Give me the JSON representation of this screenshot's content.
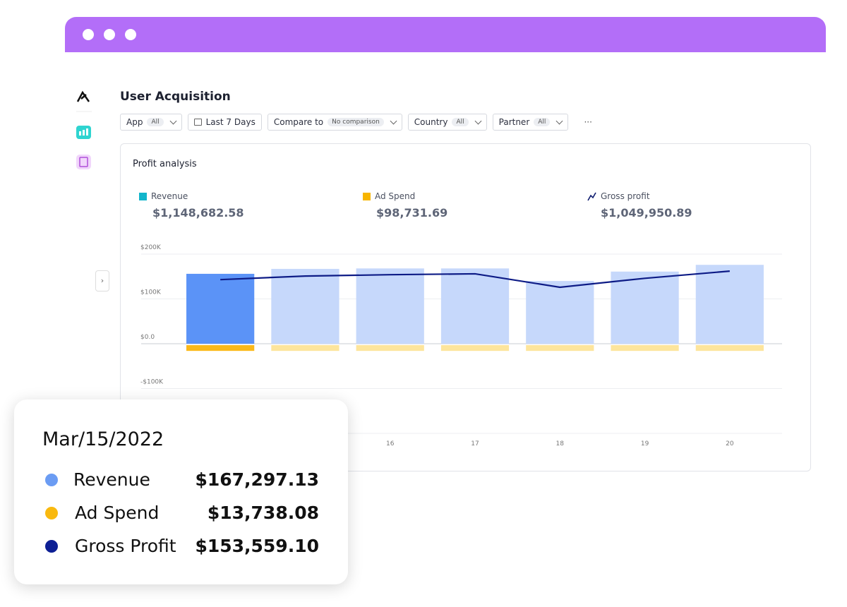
{
  "header": {
    "title": "User Acquisition"
  },
  "filters": [
    {
      "label": "App",
      "badge": "All"
    },
    {
      "label": "Last 7 Days"
    },
    {
      "label": "Compare to",
      "badge": "No comparison"
    },
    {
      "label": "Country",
      "badge": "All"
    },
    {
      "label": "Partner",
      "badge": "All"
    }
  ],
  "more": "···",
  "card": {
    "title": "Profit analysis",
    "legend": [
      {
        "name": "Revenue",
        "total": "$1,148,682.58",
        "color": "#12b5cb"
      },
      {
        "name": "Ad Spend",
        "total": "$98,731.69",
        "color": "#f7b500"
      },
      {
        "name": "Gross profit",
        "total": "$1,049,950.89",
        "color": "#0d1b6e"
      }
    ]
  },
  "chart_data": {
    "type": "bar",
    "categories": [
      null,
      null,
      "16",
      "17",
      "18",
      "19",
      "20"
    ],
    "series": [
      {
        "name": "Revenue",
        "color": "#5b93f7",
        "faded_color": "#c6d8fb",
        "values": [
          156000,
          167000,
          168000,
          168000,
          140000,
          161000,
          176000
        ]
      },
      {
        "name": "Ad Spend",
        "color": "#fbb91a",
        "faded_color": "#fde59c",
        "values": [
          -16000,
          -16000,
          -16000,
          -16000,
          -16000,
          -16000,
          -16000
        ]
      },
      {
        "name": "Gross profit",
        "type": "line",
        "color": "#0d1b86",
        "values": [
          143000,
          151000,
          154000,
          156000,
          126000,
          146000,
          162000
        ]
      }
    ],
    "selected": 0,
    "ylim": [
      -200000,
      200000
    ],
    "yticks": [
      {
        "value": -100000,
        "label": "-$100K"
      },
      {
        "value": 0,
        "label": "$0.0"
      },
      {
        "value": 100000,
        "label": "$100K"
      },
      {
        "value": 200000,
        "label": "$200K"
      }
    ],
    "grid": true
  },
  "tooltip": {
    "date": "Mar/15/2022",
    "rows": [
      {
        "name": "Revenue",
        "value": "$167,297.13",
        "color": "#6b9cf3"
      },
      {
        "name": "Ad Spend",
        "value": "$13,738.08",
        "color": "#f9b90f"
      },
      {
        "name": "Gross Profit",
        "value": "$153,559.10",
        "color": "#0d1f94"
      }
    ]
  }
}
